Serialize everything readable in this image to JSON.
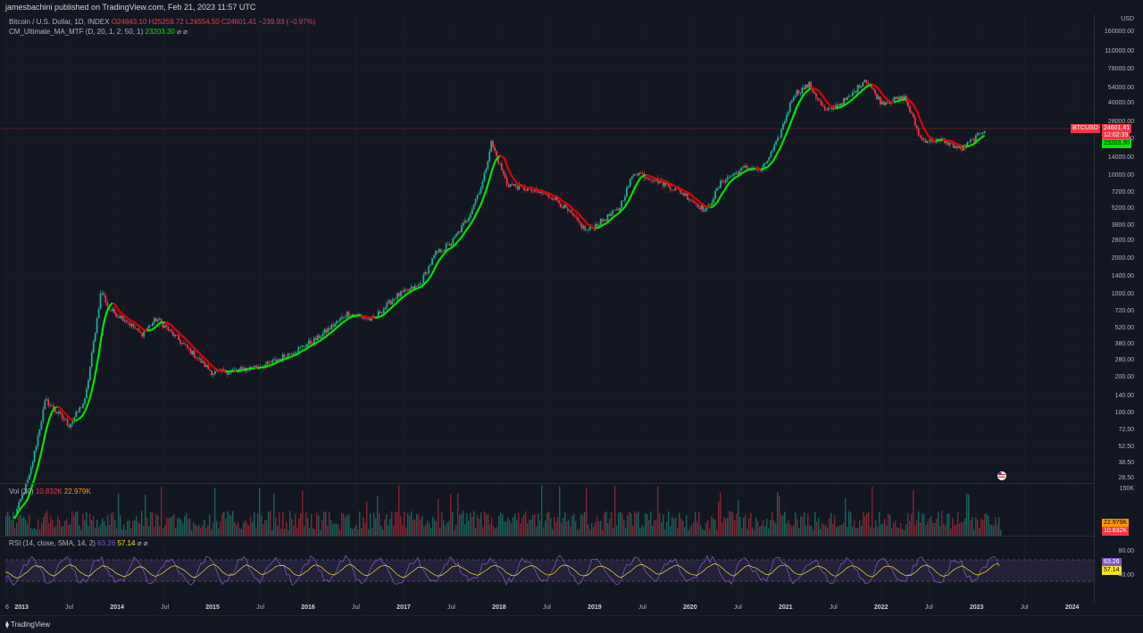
{
  "header": {
    "published": "jamesbachini published on TradingView.com, Feb 21, 2023 11:57 UTC"
  },
  "main_legend": {
    "symbol": "Bitcoin / U.S. Dollar, 1D, INDEX",
    "ohlc": "O24843.10 H25259.72 L24554.50 C24601.41 −239.93 (−0.97%)",
    "indicator": "CM_Ultimate_MA_MTF (D, 20, 1, 2, 50, 1)",
    "indicator_value": "23203.30"
  },
  "volume_legend": {
    "label": "Vol (30)",
    "v1": "10.832K",
    "v2": "22.979K"
  },
  "rsi_legend": {
    "label": "RSI (14, close, SMA, 14, 2)",
    "v1": "63.26",
    "v2": "57.14"
  },
  "price_axis": {
    "currency": "USD",
    "ticks": [
      "160000.00",
      "110000.00",
      "78000.00",
      "54000.00",
      "40000.00",
      "28000.00",
      "20000.00",
      "14000.00",
      "10000.00",
      "7200.00",
      "5200.00",
      "3800.00",
      "2800.00",
      "2000.00",
      "1400.00",
      "1000.00",
      "720.00",
      "520.00",
      "380.00",
      "280.00",
      "200.00",
      "140.00",
      "100.00",
      "72.50",
      "52.50",
      "38.50",
      "28.50"
    ]
  },
  "badges": {
    "symbol_tag": "BTCUSD",
    "last_price": "24601.41",
    "countdown": "12:02:39",
    "ma_value": "23203.30",
    "vol_a": "22.979K",
    "vol_b": "10.832K",
    "rsi_a": "63.26",
    "rsi_b": "57.14"
  },
  "volume_axis": {
    "top": "150K"
  },
  "rsi_axis": {
    "upper": "80.00",
    "lower": "40.00"
  },
  "colors": {
    "up": "#22ab94",
    "down": "#f23645",
    "ma_up": "#00e600",
    "ma_down": "#e60000",
    "rsi": "#7e57c2",
    "rsi_ma": "#f7e22f"
  },
  "footer": {
    "logo": "TradingView"
  },
  "chart_data": {
    "type": "line",
    "title": "Bitcoin / U.S. Dollar, 1D, INDEX",
    "y_scale": "log",
    "ylim": [
      28.5,
      160000
    ],
    "x_ticks": [
      "6",
      "2013",
      "Jul",
      "2014",
      "Jul",
      "2015",
      "Jul",
      "2016",
      "Jul",
      "2017",
      "Jul",
      "2018",
      "Jul",
      "2019",
      "Jul",
      "2020",
      "Jul",
      "2021",
      "Jul",
      "2022",
      "Jul",
      "2023",
      "Jul",
      "2024"
    ],
    "series": [
      {
        "name": "BTCUSD",
        "x": [
          "2012-12",
          "2013-02",
          "2013-04",
          "2013-05",
          "2013-07",
          "2013-09",
          "2013-11",
          "2013-12",
          "2014-02",
          "2014-04",
          "2014-06",
          "2014-09",
          "2015-01",
          "2015-04",
          "2015-08",
          "2015-11",
          "2016-02",
          "2016-06",
          "2016-09",
          "2016-12",
          "2017-03",
          "2017-05",
          "2017-07",
          "2017-09",
          "2017-11",
          "2017-12",
          "2018-02",
          "2018-05",
          "2018-08",
          "2018-11",
          "2018-12",
          "2019-04",
          "2019-06",
          "2019-09",
          "2019-12",
          "2020-03",
          "2020-05",
          "2020-08",
          "2020-10",
          "2020-12",
          "2021-02",
          "2021-04",
          "2021-06",
          "2021-09",
          "2021-11",
          "2022-01",
          "2022-04",
          "2022-06",
          "2022-09",
          "2022-11",
          "2023-01",
          "2023-02"
        ],
        "values": [
          13,
          30,
          130,
          110,
          80,
          130,
          1100,
          750,
          620,
          460,
          630,
          400,
          220,
          230,
          260,
          330,
          420,
          700,
          610,
          960,
          1200,
          2200,
          2700,
          4300,
          9000,
          19000,
          8500,
          7500,
          6500,
          4000,
          3400,
          5200,
          10800,
          9000,
          7200,
          5000,
          9000,
          11700,
          11000,
          19500,
          48000,
          58000,
          34000,
          45000,
          65000,
          41000,
          45000,
          20000,
          19500,
          16500,
          21000,
          24601.41
        ]
      }
    ],
    "volume_axis_max": "150K",
    "rsi_bands": [
      80,
      40
    ]
  }
}
